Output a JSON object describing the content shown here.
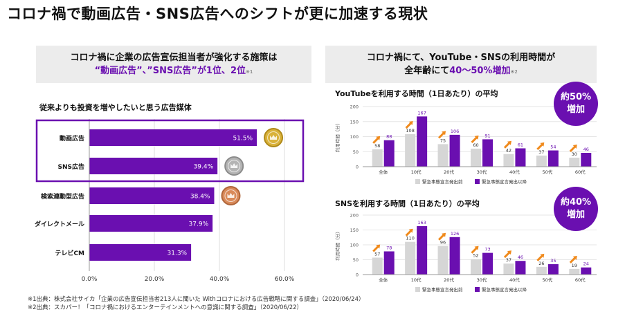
{
  "page": {
    "title": "コロナ禍で動画広告・SNS広告へのシフトが更に加速する現状"
  },
  "left_panel": {
    "header_line1": "コロナ禍に企業の広告宣伝担当者が強化する施策は",
    "header_line2": "“動画広告”、”SNS広告”が1位、2位",
    "header_note": "※1"
  },
  "right_panel": {
    "header_line1": "コロナ禍にて、YouTube・SNSの利用時間が",
    "header_line2a": "全年齢にて",
    "header_line2b": "40〜50%増加",
    "header_note": "※2",
    "badge1_line1": "約50%",
    "badge1_line2": "増加",
    "badge2_line1": "約40%",
    "badge2_line2": "増加"
  },
  "footnotes": {
    "note1": "※1出典：株式会社サイカ「企業の広告宣伝担当者213人に聞いた Withコロナにおける広告戦略に関する調査」（2020/06/24）",
    "note2": "※2出典：スカパー！「コロナ禍におけるエンターテインメントへの意識に関する調査」（2020/06/22）"
  },
  "colors": {
    "purple": "#6a0fb0",
    "gray": "#d6d6d6",
    "arrow": "#f08a1c",
    "gold": "#d9b23a",
    "silver": "#b4b4b4",
    "bronze": "#d98a5a"
  },
  "chart_data": [
    {
      "type": "bar",
      "orientation": "horizontal",
      "title": "従来よりも投資を増やしたいと思う広告媒体",
      "categories": [
        "動画広告",
        "SNS広告",
        "検索連動型広告",
        "ダイレクトメール",
        "テレビCM"
      ],
      "values": [
        51.5,
        39.4,
        38.4,
        37.9,
        31.3
      ],
      "value_labels": [
        "51.5%",
        "39.4%",
        "38.4%",
        "37.9%",
        "31.3%"
      ],
      "xlim": [
        0,
        60
      ],
      "xticks": [
        "0.0%",
        "20.0%",
        "40.0%",
        "60.0%"
      ],
      "grid": true,
      "highlight": [
        "動画広告",
        "SNS広告"
      ],
      "medals": [
        "gold",
        "silver",
        "bronze"
      ]
    },
    {
      "type": "bar",
      "title": "YouTubeを利用する時間（1日あたり）の平均",
      "ylabel": "利用時間（分）",
      "ylim": [
        0,
        200
      ],
      "yticks": [
        "0",
        "50",
        "100",
        "150",
        "200"
      ],
      "categories": [
        "全体",
        "10代",
        "20代",
        "30代",
        "40代",
        "50代",
        "60代"
      ],
      "series": [
        {
          "name": "緊急事態宣言発出前",
          "values": [
            58,
            108,
            75,
            60,
            42,
            37,
            30
          ]
        },
        {
          "name": "緊急事態宣言発出以降",
          "values": [
            88,
            167,
            106,
            91,
            61,
            54,
            46
          ]
        }
      ],
      "legend": "bottom"
    },
    {
      "type": "bar",
      "title": "SNSを利用する時間（1日あたり）の平均",
      "ylabel": "利用時間（分）",
      "ylim": [
        0,
        200
      ],
      "yticks": [
        "0",
        "50",
        "100",
        "150",
        "200"
      ],
      "categories": [
        "全体",
        "10代",
        "20代",
        "30代",
        "40代",
        "50代",
        "60代"
      ],
      "series": [
        {
          "name": "緊急事態宣言発出前",
          "values": [
            57,
            110,
            96,
            52,
            37,
            26,
            19
          ]
        },
        {
          "name": "緊急事態宣言発出以降",
          "values": [
            78,
            163,
            126,
            73,
            46,
            35,
            24
          ]
        }
      ],
      "legend": "bottom"
    }
  ]
}
